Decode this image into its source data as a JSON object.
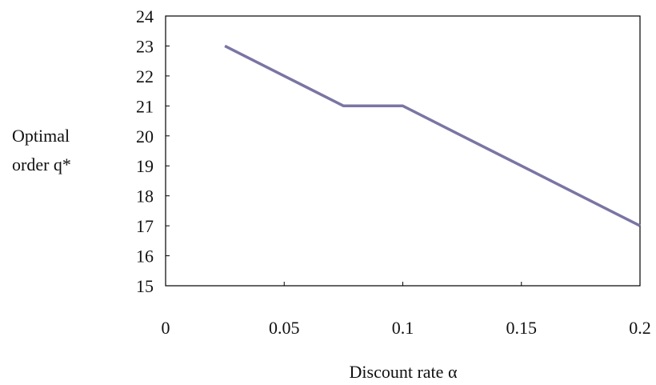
{
  "chart_data": {
    "type": "line",
    "title": "",
    "xlabel": "Discount rate α",
    "ylabel_lines": [
      "Optimal",
      "order q*"
    ],
    "xlim": [
      0,
      0.2
    ],
    "ylim": [
      15,
      24
    ],
    "x_ticks": [
      "0",
      "0.05",
      "0.1",
      "0.15",
      "0.2"
    ],
    "x_tick_values": [
      0,
      0.05,
      0.1,
      0.15,
      0.2
    ],
    "y_ticks": [
      "15",
      "16",
      "17",
      "18",
      "19",
      "20",
      "21",
      "22",
      "23",
      "24"
    ],
    "y_tick_values": [
      15,
      16,
      17,
      18,
      19,
      20,
      21,
      22,
      23,
      24
    ],
    "grid": false,
    "series": [
      {
        "color": "#7a75a3",
        "x": [
          0.025,
          0.05,
          0.075,
          0.1,
          0.125,
          0.15,
          0.175,
          0.2
        ],
        "y": [
          23,
          22,
          21,
          21,
          20,
          19,
          18,
          17
        ]
      }
    ]
  }
}
